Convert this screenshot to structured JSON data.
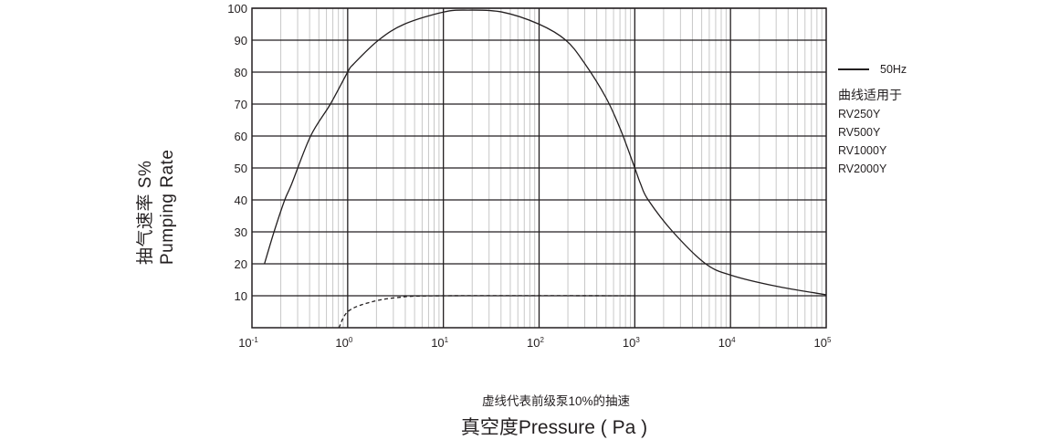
{
  "chart_data": {
    "type": "line",
    "title": "",
    "xlabel": "真空度Pressure ( Pa )",
    "ylabel": [
      "抽气速率 S%",
      "Pumping Rate"
    ],
    "x_scale": "log",
    "xlim": [
      0.1,
      100000
    ],
    "ylim": [
      0,
      100
    ],
    "grid": true,
    "x_ticks": [
      {
        "base": "10",
        "exp": "-1"
      },
      {
        "base": "10",
        "exp": "0"
      },
      {
        "base": "10",
        "exp": "1"
      },
      {
        "base": "10",
        "exp": "2"
      },
      {
        "base": "10",
        "exp": "3"
      },
      {
        "base": "10",
        "exp": "4"
      },
      {
        "base": "10",
        "exp": "5"
      }
    ],
    "y_ticks": [
      "10",
      "20",
      "30",
      "40",
      "50",
      "60",
      "70",
      "80",
      "90",
      "100"
    ],
    "legend_placement": "right",
    "series": [
      {
        "name": "50Hz",
        "style": "solid",
        "color": "#231f20",
        "points": [
          [
            0.135,
            20
          ],
          [
            0.17,
            30
          ],
          [
            0.22,
            40
          ],
          [
            0.26,
            45
          ],
          [
            0.41,
            60
          ],
          [
            0.66,
            70
          ],
          [
            1.0,
            80
          ],
          [
            1.15,
            82.5
          ],
          [
            2.1,
            90
          ],
          [
            3.9,
            95
          ],
          [
            10,
            98.8
          ],
          [
            18,
            99.4
          ],
          [
            41,
            98.8
          ],
          [
            100,
            95
          ],
          [
            190,
            90
          ],
          [
            295,
            83
          ],
          [
            500,
            72
          ],
          [
            710,
            62
          ],
          [
            1000,
            50
          ],
          [
            1150,
            45
          ],
          [
            1380,
            40
          ],
          [
            2500,
            30
          ],
          [
            5500,
            20
          ],
          [
            10500,
            16.3
          ],
          [
            30000,
            13
          ],
          [
            100000,
            10.3
          ]
        ]
      },
      {
        "name": "虚线代表前级泵10%的抽速",
        "style": "dashed",
        "color": "#231f20",
        "points": [
          [
            0.81,
            0
          ],
          [
            1.0,
            5
          ],
          [
            1.6,
            7.7
          ],
          [
            3.2,
            9.4
          ],
          [
            10,
            10
          ],
          [
            1000,
            10
          ]
        ]
      }
    ],
    "legend": {
      "entry": "50Hz",
      "applies_title": "曲线适用于",
      "models": [
        "RV250Y",
        "RV500Y",
        "RV1000Y",
        "RV2000Y"
      ]
    },
    "note": "虚线代表前级泵10%的抽速"
  }
}
